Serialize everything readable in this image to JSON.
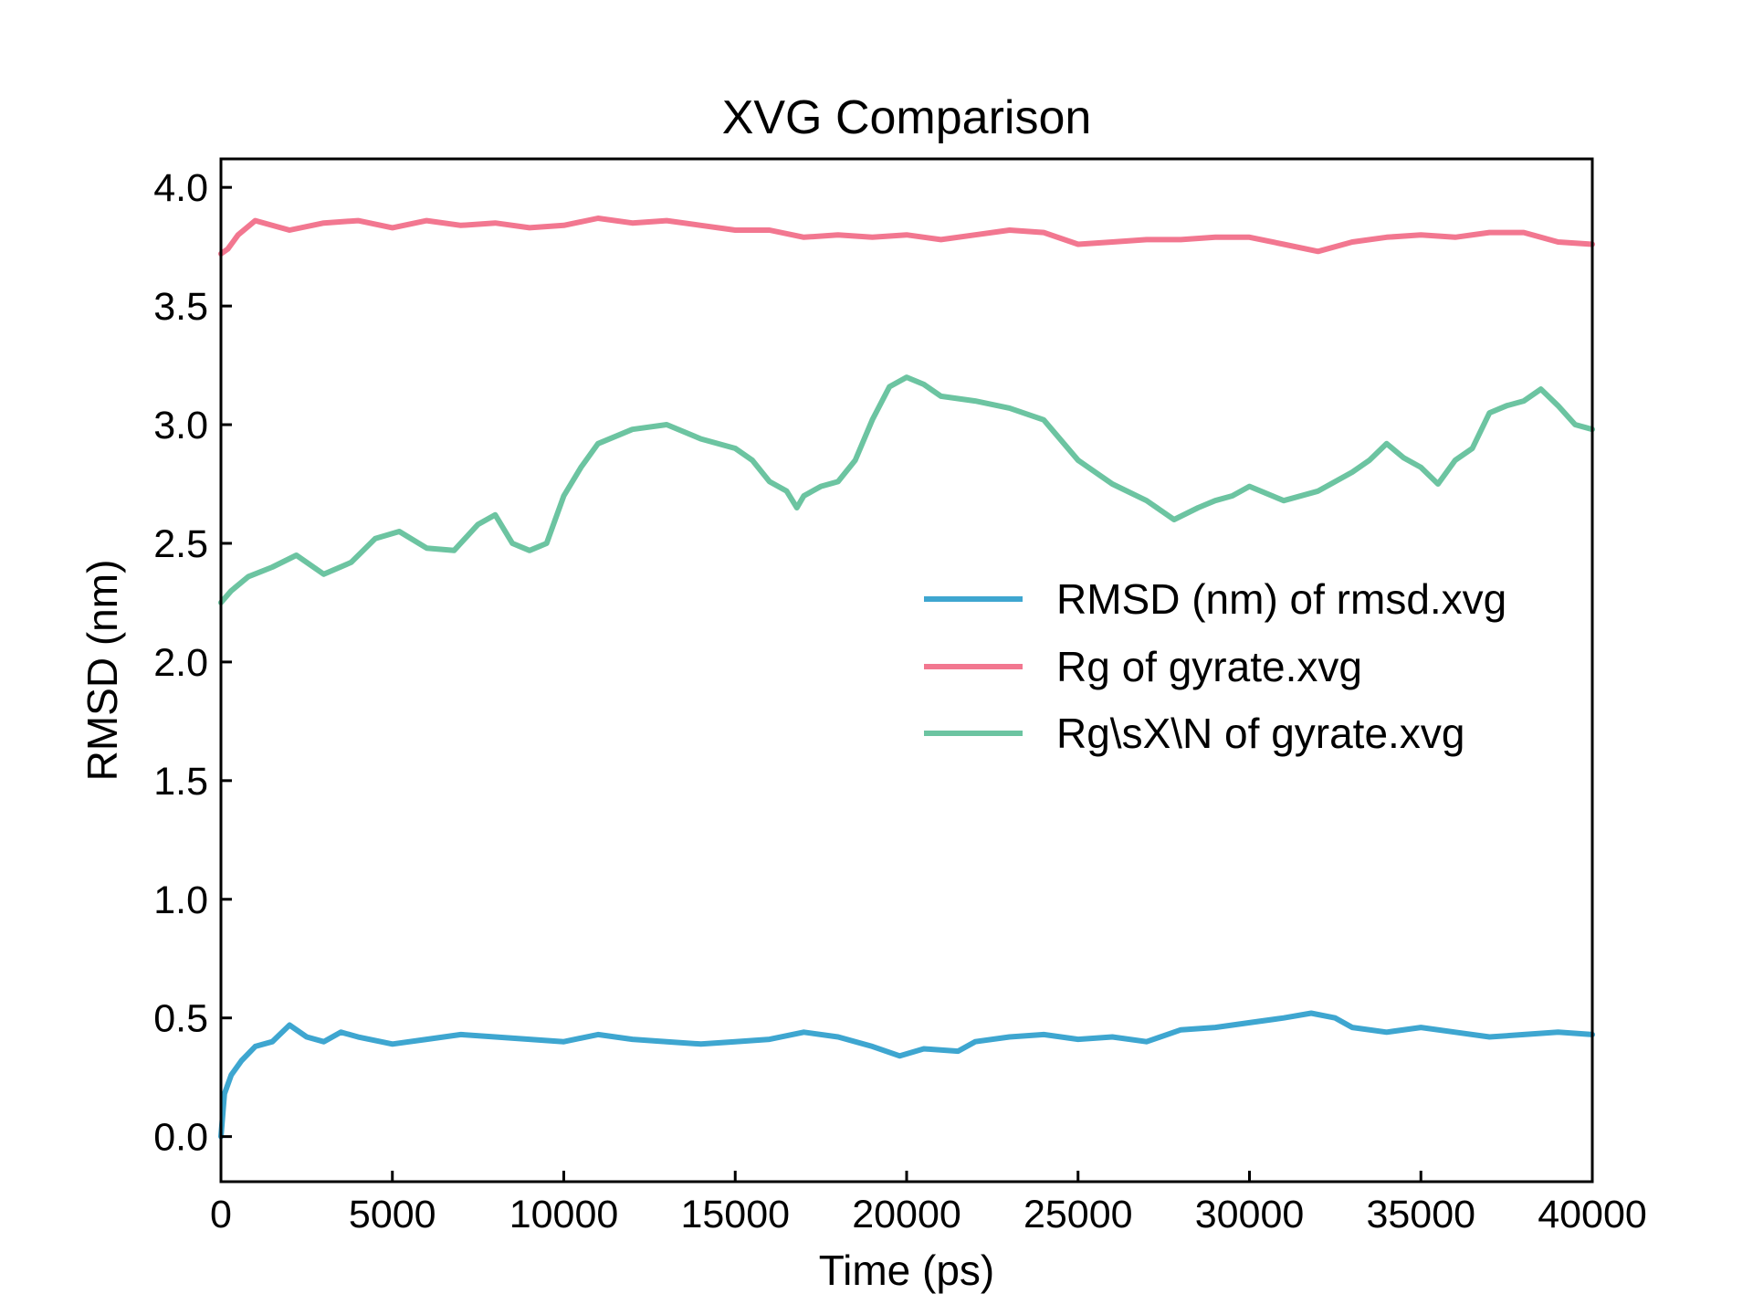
{
  "chart_data": {
    "type": "line",
    "title": "XVG Comparison",
    "xlabel": "Time (ps)",
    "ylabel": "RMSD (nm)",
    "xlim": [
      0,
      40000
    ],
    "ylim": [
      -0.19,
      4.12
    ],
    "xticks": [
      0,
      5000,
      10000,
      15000,
      20000,
      25000,
      30000,
      35000,
      40000
    ],
    "xtick_labels": [
      "0",
      "5000",
      "10000",
      "15000",
      "20000",
      "25000",
      "30000",
      "35000",
      "40000"
    ],
    "yticks": [
      0.0,
      0.5,
      1.0,
      1.5,
      2.0,
      2.5,
      3.0,
      3.5,
      4.0
    ],
    "ytick_labels": [
      "0.0",
      "0.5",
      "1.0",
      "1.5",
      "2.0",
      "2.5",
      "3.0",
      "3.5",
      "4.0"
    ],
    "grid": false,
    "legend_position": "center-right",
    "series": [
      {
        "name": "RMSD (nm) of rmsd.xvg",
        "color": "#3ea6d0",
        "x": [
          0,
          100,
          300,
          600,
          1000,
          1500,
          2000,
          2500,
          3000,
          3500,
          4000,
          5000,
          6000,
          7000,
          8000,
          9000,
          10000,
          11000,
          12000,
          13000,
          14000,
          15000,
          16000,
          17000,
          18000,
          19000,
          19800,
          20500,
          21500,
          22000,
          23000,
          24000,
          25000,
          26000,
          27000,
          28000,
          29000,
          30000,
          31000,
          31800,
          32500,
          33000,
          34000,
          35000,
          36000,
          37000,
          38000,
          39000,
          40000
        ],
        "values": [
          0.0,
          0.18,
          0.26,
          0.32,
          0.38,
          0.4,
          0.47,
          0.42,
          0.4,
          0.44,
          0.42,
          0.39,
          0.41,
          0.43,
          0.42,
          0.41,
          0.4,
          0.43,
          0.41,
          0.4,
          0.39,
          0.4,
          0.41,
          0.44,
          0.42,
          0.38,
          0.34,
          0.37,
          0.36,
          0.4,
          0.42,
          0.43,
          0.41,
          0.42,
          0.4,
          0.45,
          0.46,
          0.48,
          0.5,
          0.52,
          0.5,
          0.46,
          0.44,
          0.46,
          0.44,
          0.42,
          0.43,
          0.44,
          0.43
        ]
      },
      {
        "name": "Rg of gyrate.xvg",
        "color": "#f27790",
        "x": [
          0,
          200,
          500,
          1000,
          2000,
          3000,
          4000,
          5000,
          6000,
          7000,
          8000,
          9000,
          10000,
          11000,
          12000,
          13000,
          14000,
          15000,
          16000,
          17000,
          18000,
          19000,
          20000,
          21000,
          22000,
          23000,
          24000,
          25000,
          26000,
          27000,
          28000,
          29000,
          30000,
          31000,
          32000,
          33000,
          34000,
          35000,
          36000,
          37000,
          38000,
          39000,
          40000
        ],
        "values": [
          3.72,
          3.74,
          3.8,
          3.86,
          3.82,
          3.85,
          3.86,
          3.83,
          3.86,
          3.84,
          3.85,
          3.83,
          3.84,
          3.87,
          3.85,
          3.86,
          3.84,
          3.82,
          3.82,
          3.79,
          3.8,
          3.79,
          3.8,
          3.78,
          3.8,
          3.82,
          3.81,
          3.76,
          3.77,
          3.78,
          3.78,
          3.79,
          3.79,
          3.76,
          3.73,
          3.77,
          3.79,
          3.8,
          3.79,
          3.81,
          3.81,
          3.77,
          3.76
        ]
      },
      {
        "name": "Rg\\sX\\N of gyrate.xvg",
        "color": "#6cc4a1",
        "x": [
          0,
          300,
          800,
          1500,
          2200,
          3000,
          3800,
          4500,
          5200,
          6000,
          6800,
          7500,
          8000,
          8500,
          9000,
          9500,
          10000,
          10500,
          11000,
          12000,
          13000,
          14000,
          15000,
          15500,
          16000,
          16500,
          16800,
          17000,
          17500,
          18000,
          18500,
          19000,
          19500,
          20000,
          20500,
          21000,
          22000,
          23000,
          24000,
          25000,
          26000,
          27000,
          27800,
          28500,
          29000,
          29500,
          30000,
          31000,
          32000,
          33000,
          33500,
          34000,
          34500,
          35000,
          35500,
          36000,
          36500,
          37000,
          37500,
          38000,
          38500,
          39000,
          39500,
          40000
        ],
        "values": [
          2.25,
          2.3,
          2.36,
          2.4,
          2.45,
          2.37,
          2.42,
          2.52,
          2.55,
          2.48,
          2.47,
          2.58,
          2.62,
          2.5,
          2.47,
          2.5,
          2.7,
          2.82,
          2.92,
          2.98,
          3.0,
          2.94,
          2.9,
          2.85,
          2.76,
          2.72,
          2.65,
          2.7,
          2.74,
          2.76,
          2.85,
          3.02,
          3.16,
          3.2,
          3.17,
          3.12,
          3.1,
          3.07,
          3.02,
          2.85,
          2.75,
          2.68,
          2.6,
          2.65,
          2.68,
          2.7,
          2.74,
          2.68,
          2.72,
          2.8,
          2.85,
          2.92,
          2.86,
          2.82,
          2.75,
          2.85,
          2.9,
          3.05,
          3.08,
          3.1,
          3.15,
          3.08,
          3.0,
          2.98
        ]
      }
    ]
  }
}
